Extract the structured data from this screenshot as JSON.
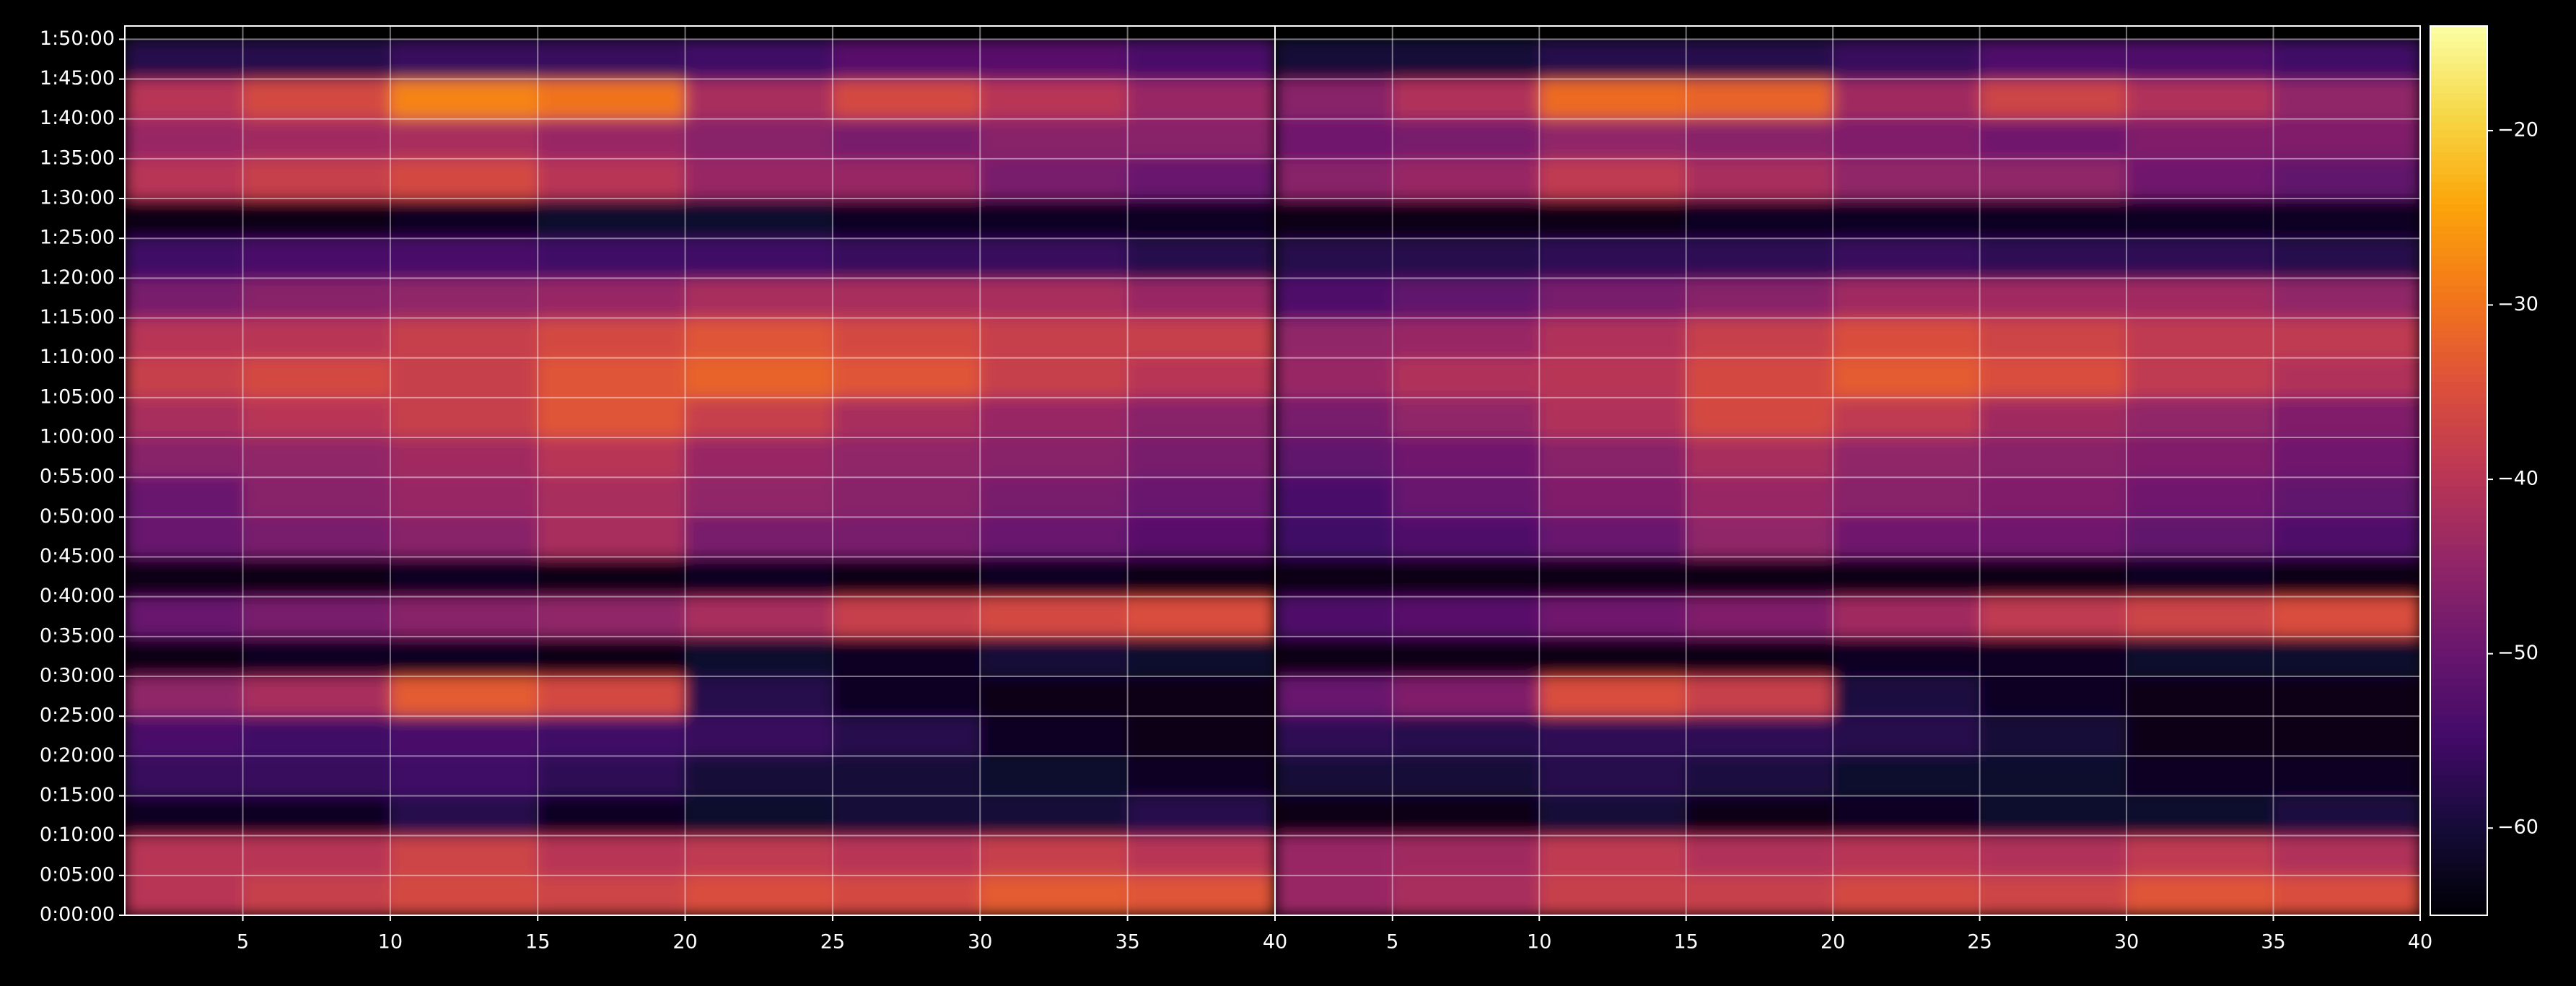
{
  "chart_data": [
    {
      "type": "heatmap",
      "colormap": "inferno",
      "grid": true,
      "xlim": [
        1,
        40
      ],
      "xticks": [
        5,
        10,
        15,
        20,
        25,
        30,
        35,
        40
      ],
      "ylim": [
        0,
        6700
      ],
      "yticks": [
        {
          "value": 0,
          "label": "0:00:00"
        },
        {
          "value": 300,
          "label": "0:05:00"
        },
        {
          "value": 600,
          "label": "0:10:00"
        },
        {
          "value": 900,
          "label": "0:15:00"
        },
        {
          "value": 1200,
          "label": "0:20:00"
        },
        {
          "value": 1500,
          "label": "0:25:00"
        },
        {
          "value": 1800,
          "label": "0:30:00"
        },
        {
          "value": 2100,
          "label": "0:35:00"
        },
        {
          "value": 2400,
          "label": "0:40:00"
        },
        {
          "value": 2700,
          "label": "0:45:00"
        },
        {
          "value": 3000,
          "label": "0:50:00"
        },
        {
          "value": 3300,
          "label": "0:55:00"
        },
        {
          "value": 3600,
          "label": "1:00:00"
        },
        {
          "value": 3900,
          "label": "1:05:00"
        },
        {
          "value": 4200,
          "label": "1:10:00"
        },
        {
          "value": 4500,
          "label": "1:15:00"
        },
        {
          "value": 4800,
          "label": "1:20:00"
        },
        {
          "value": 5100,
          "label": "1:25:00"
        },
        {
          "value": 5400,
          "label": "1:30:00"
        },
        {
          "value": 5700,
          "label": "1:35:00"
        },
        {
          "value": 6000,
          "label": "1:40:00"
        },
        {
          "value": 6300,
          "label": "1:45:00"
        },
        {
          "value": 6600,
          "label": "1:50:00"
        }
      ],
      "x_bins": [
        1,
        5,
        10,
        15,
        20,
        25,
        30,
        35,
        40
      ],
      "y_bins": [
        0,
        300,
        600,
        900,
        1200,
        1500,
        1800,
        2100,
        2400,
        2700,
        3000,
        3300,
        3600,
        3900,
        4200,
        4500,
        4800,
        5100,
        5400,
        5700,
        6000,
        6300,
        6600
      ],
      "z": [
        [
          -40,
          -38,
          -36,
          -37,
          -35,
          -36,
          -33,
          -34
        ],
        [
          -40,
          -40,
          -37,
          -40,
          -39,
          -40,
          -38,
          -40
        ],
        [
          -62,
          -62,
          -58,
          -62,
          -61,
          -60,
          -60,
          -58
        ],
        [
          -56,
          -56,
          -55,
          -57,
          -60,
          -60,
          -61,
          -62
        ],
        [
          -54,
          -55,
          -54,
          -55,
          -56,
          -58,
          -62,
          -63
        ],
        [
          -45,
          -42,
          -33,
          -36,
          -58,
          -62,
          -63,
          -63
        ],
        [
          -63,
          -62,
          -62,
          -63,
          -61,
          -62,
          -60,
          -61
        ],
        [
          -50,
          -48,
          -46,
          -45,
          -42,
          -38,
          -36,
          -35
        ],
        [
          -63,
          -63,
          -62,
          -63,
          -62,
          -63,
          -62,
          -63
        ],
        [
          -50,
          -48,
          -46,
          -42,
          -48,
          -48,
          -50,
          -52
        ],
        [
          -50,
          -46,
          -44,
          -42,
          -45,
          -46,
          -48,
          -50
        ],
        [
          -46,
          -45,
          -43,
          -40,
          -44,
          -45,
          -46,
          -48
        ],
        [
          -42,
          -40,
          -38,
          -34,
          -38,
          -42,
          -44,
          -46
        ],
        [
          -38,
          -36,
          -38,
          -34,
          -32,
          -34,
          -38,
          -40
        ],
        [
          -40,
          -40,
          -38,
          -36,
          -34,
          -36,
          -38,
          -38
        ],
        [
          -48,
          -46,
          -45,
          -44,
          -42,
          -42,
          -42,
          -44
        ],
        [
          -55,
          -54,
          -54,
          -55,
          -55,
          -56,
          -56,
          -58
        ],
        [
          -63,
          -63,
          -62,
          -61,
          -61,
          -62,
          -62,
          -62
        ],
        [
          -40,
          -38,
          -36,
          -40,
          -44,
          -44,
          -48,
          -50
        ],
        [
          -44,
          -43,
          -42,
          -44,
          -46,
          -48,
          -46,
          -46
        ],
        [
          -40,
          -36,
          -28,
          -30,
          -42,
          -36,
          -40,
          -44
        ],
        [
          -58,
          -58,
          -56,
          -56,
          -55,
          -52,
          -52,
          -54
        ]
      ]
    },
    {
      "type": "heatmap",
      "colormap": "inferno",
      "grid": true,
      "xlim": [
        1,
        40
      ],
      "xticks": [
        5,
        10,
        15,
        20,
        25,
        30,
        35,
        40
      ],
      "ylim": [
        0,
        6700
      ],
      "x_bins": [
        1,
        5,
        10,
        15,
        20,
        25,
        30,
        35,
        40
      ],
      "y_bins": [
        0,
        300,
        600,
        900,
        1200,
        1500,
        1800,
        2100,
        2400,
        2700,
        3000,
        3300,
        3600,
        3900,
        4200,
        4500,
        4800,
        5100,
        5400,
        5700,
        6000,
        6300,
        6600
      ],
      "zlim": [
        -65,
        -14
      ],
      "zticks": [
        {
          "value": -20,
          "label": "−20"
        },
        {
          "value": -30,
          "label": "−30"
        },
        {
          "value": -40,
          "label": "−40"
        },
        {
          "value": -50,
          "label": "−50"
        },
        {
          "value": -60,
          "label": "−60"
        }
      ],
      "z": [
        [
          -44,
          -42,
          -38,
          -38,
          -36,
          -37,
          -34,
          -35
        ],
        [
          -44,
          -43,
          -39,
          -41,
          -40,
          -41,
          -39,
          -41
        ],
        [
          -63,
          -63,
          -60,
          -63,
          -62,
          -61,
          -61,
          -59
        ],
        [
          -60,
          -60,
          -58,
          -59,
          -61,
          -61,
          -62,
          -62
        ],
        [
          -57,
          -58,
          -57,
          -57,
          -58,
          -60,
          -63,
          -63
        ],
        [
          -50,
          -47,
          -35,
          -38,
          -59,
          -62,
          -63,
          -63
        ],
        [
          -63,
          -63,
          -63,
          -63,
          -62,
          -62,
          -61,
          -61
        ],
        [
          -53,
          -52,
          -49,
          -47,
          -43,
          -39,
          -37,
          -35
        ],
        [
          -63,
          -63,
          -63,
          -63,
          -63,
          -63,
          -62,
          -63
        ],
        [
          -55,
          -53,
          -50,
          -45,
          -49,
          -49,
          -51,
          -53
        ],
        [
          -54,
          -50,
          -47,
          -44,
          -46,
          -47,
          -49,
          -51
        ],
        [
          -51,
          -49,
          -46,
          -42,
          -45,
          -46,
          -47,
          -49
        ],
        [
          -48,
          -45,
          -41,
          -36,
          -39,
          -43,
          -45,
          -47
        ],
        [
          -44,
          -41,
          -40,
          -36,
          -33,
          -35,
          -39,
          -41
        ],
        [
          -45,
          -44,
          -41,
          -38,
          -35,
          -37,
          -39,
          -39
        ],
        [
          -53,
          -51,
          -48,
          -46,
          -43,
          -43,
          -43,
          -45
        ],
        [
          -58,
          -58,
          -57,
          -57,
          -56,
          -57,
          -57,
          -58
        ],
        [
          -63,
          -63,
          -63,
          -62,
          -62,
          -62,
          -62,
          -62
        ],
        [
          -46,
          -44,
          -39,
          -42,
          -45,
          -45,
          -49,
          -51
        ],
        [
          -49,
          -48,
          -45,
          -46,
          -47,
          -49,
          -47,
          -47
        ],
        [
          -46,
          -41,
          -31,
          -32,
          -43,
          -37,
          -41,
          -45
        ],
        [
          -60,
          -60,
          -58,
          -58,
          -56,
          -53,
          -53,
          -55
        ]
      ]
    }
  ]
}
